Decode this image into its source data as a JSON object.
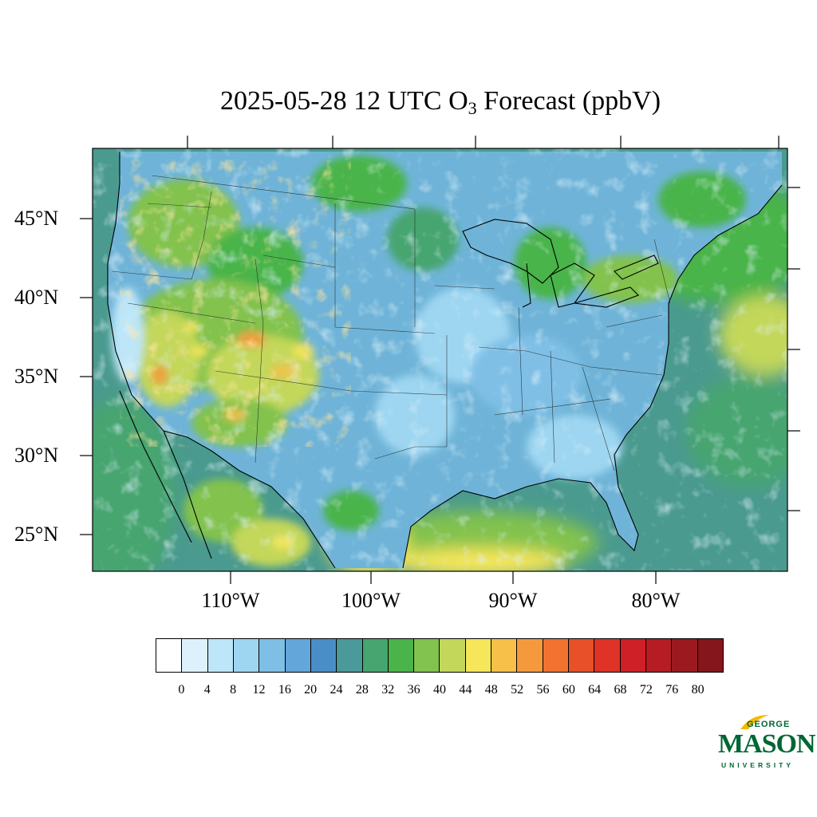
{
  "title": {
    "main": "2025-05-28 12 UTC O",
    "subscript": "3",
    "tail": " Forecast (ppbV)"
  },
  "map": {
    "projection": "lambert-conformal",
    "lat_labels": [
      "45°N",
      "40°N",
      "35°N",
      "30°N",
      "25°N"
    ],
    "lon_labels": [
      "110°W",
      "100°W",
      "90°W",
      "80°W"
    ]
  },
  "colorbar": {
    "ticks": [
      "0",
      "4",
      "8",
      "12",
      "16",
      "20",
      "24",
      "28",
      "32",
      "36",
      "40",
      "44",
      "48",
      "52",
      "56",
      "60",
      "64",
      "68",
      "72",
      "76",
      "80"
    ],
    "colors": [
      "#ffffff",
      "#dcf1fb",
      "#bde6f8",
      "#9ed6f1",
      "#7fbfe6",
      "#63a6da",
      "#4a8ec8",
      "#4a9a9a",
      "#47a56f",
      "#4ab44a",
      "#82c24e",
      "#c3d75a",
      "#f6e65a",
      "#f7c048",
      "#f59a3c",
      "#f27330",
      "#e8502a",
      "#de3326",
      "#cf2027",
      "#b51c23",
      "#9c1a1f",
      "#85161b"
    ]
  },
  "logo": {
    "line1": "GEORGE",
    "line2": "MASON",
    "line3": "UNIVERSITY"
  }
}
